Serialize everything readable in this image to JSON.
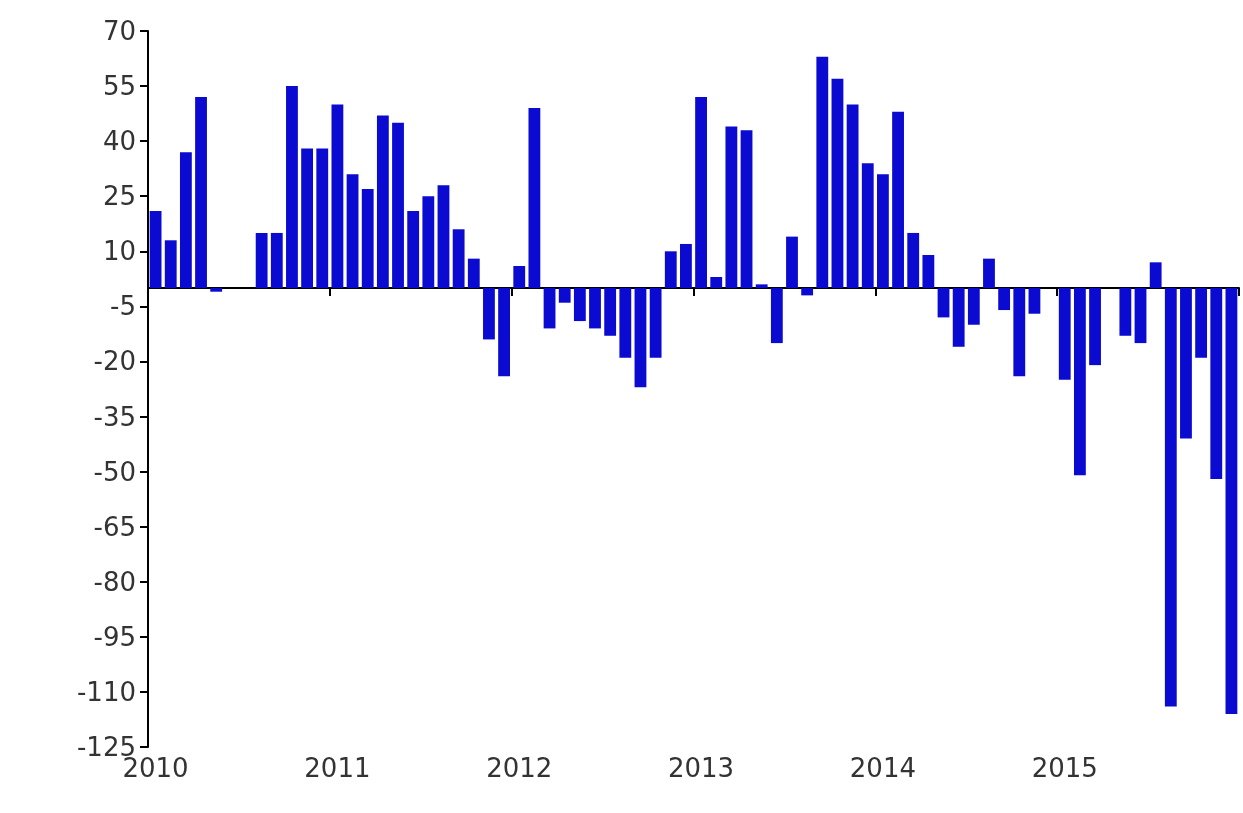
{
  "chart_data": {
    "type": "bar",
    "categories": [
      "2010",
      null,
      null,
      null,
      null,
      null,
      null,
      null,
      null,
      null,
      null,
      null,
      "2011",
      null,
      null,
      null,
      null,
      null,
      null,
      null,
      null,
      null,
      null,
      null,
      "2012",
      null,
      null,
      null,
      null,
      null,
      null,
      null,
      null,
      null,
      null,
      null,
      "2013",
      null,
      null,
      null,
      null,
      null,
      null,
      null,
      null,
      null,
      null,
      null,
      "2014",
      null,
      null,
      null,
      null,
      null,
      null,
      null,
      null,
      null,
      null,
      null,
      "2015",
      null,
      null,
      null,
      null,
      null,
      null,
      null,
      null,
      null,
      null,
      null
    ],
    "values": [
      21,
      13,
      37,
      52,
      -1,
      0,
      0,
      15,
      15,
      55,
      38,
      38,
      50,
      31,
      27,
      47,
      45,
      21,
      25,
      28,
      16,
      8,
      -14,
      -24,
      6,
      49,
      -11,
      -4,
      -9,
      -11,
      -13,
      -19,
      -27,
      -19,
      10,
      12,
      52,
      3,
      44,
      43,
      1,
      -15,
      14,
      -2,
      63,
      57,
      50,
      34,
      31,
      48,
      15,
      9,
      -8,
      -16,
      -10,
      8,
      -6,
      -24,
      -7,
      0,
      -25,
      -51,
      -21,
      0,
      -13,
      -15,
      7,
      -114,
      -41,
      -19,
      -52,
      -116
    ],
    "color": "#0a0ad0",
    "ylim": [
      -125,
      70
    ],
    "yticks": [
      -125,
      -110,
      -95,
      -80,
      -65,
      -50,
      -35,
      -20,
      -5,
      10,
      25,
      40,
      55,
      70
    ],
    "grid": false
  }
}
